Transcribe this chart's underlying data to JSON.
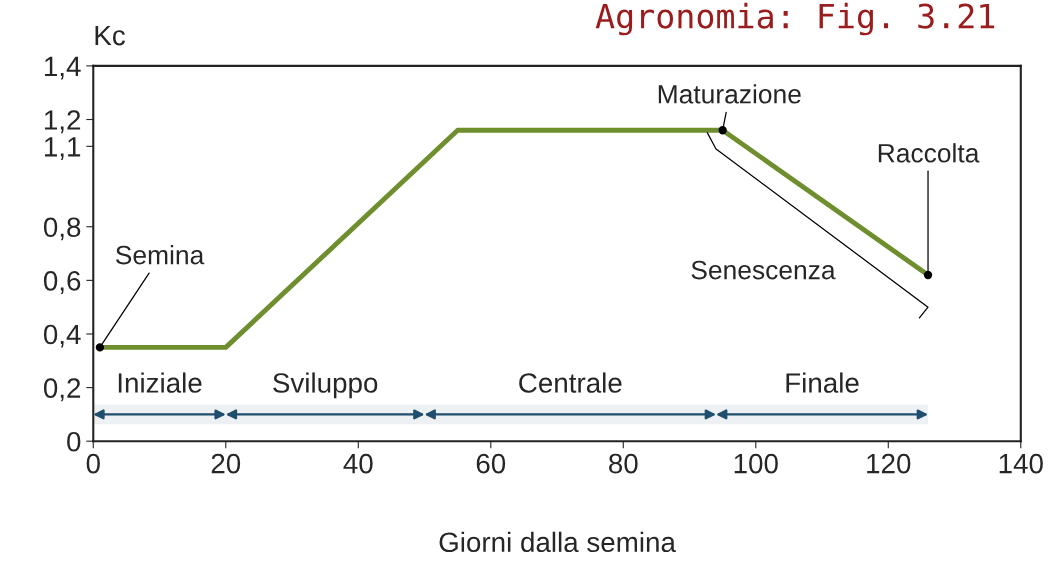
{
  "chart_data": {
    "type": "line",
    "title": "Agronomia: Fig. 3.21",
    "xlabel": "Giorni dalla semina",
    "ylabel": "Kc",
    "x": [
      1,
      20,
      55,
      95,
      126
    ],
    "series": [
      {
        "color": "#6f8f2f",
        "values": [
          0.35,
          0.35,
          1.16,
          1.16,
          0.62
        ]
      }
    ],
    "xlim": [
      0,
      140
    ],
    "xticks": [
      0,
      20,
      40,
      60,
      80,
      100,
      120,
      140
    ],
    "ylim": [
      0,
      1.4
    ],
    "yticks": [
      0,
      {
        "value": 0.2,
        "label": "0,2"
      },
      {
        "value": 0.4,
        "label": "0,4"
      },
      {
        "value": 0.6,
        "label": "0,6"
      },
      {
        "value": 0.8,
        "label": "0,8"
      },
      {
        "value": 1.1,
        "label": "1,1"
      },
      {
        "value": 1.2,
        "label": "1,2"
      },
      {
        "value": 1.4,
        "label": "1,4"
      }
    ],
    "annotations": [
      {
        "text": "Semina",
        "x": 1,
        "y": 0.35
      },
      {
        "text": "Maturazione",
        "x": 95,
        "y": 1.16
      },
      {
        "text": "Raccolta",
        "x": 126,
        "y": 0.62
      },
      "Senescenza"
    ],
    "bands": [
      {
        "axis": "x",
        "from": 0,
        "to": 20,
        "label": "Iniziale",
        "color": "#1f4e6e"
      },
      {
        "axis": "x",
        "from": 20,
        "to": 50,
        "label": "Sviluppo",
        "color": "#1f4e6e"
      },
      {
        "axis": "x",
        "from": 50,
        "to": 94,
        "label": "Centrale",
        "color": "#1f4e6e"
      },
      {
        "axis": "x",
        "from": 94,
        "to": 126,
        "label": "Finale",
        "color": "#1f4e6e"
      }
    ],
    "grid": false,
    "legend": false,
    "line_style": "solid",
    "marker": "none"
  }
}
